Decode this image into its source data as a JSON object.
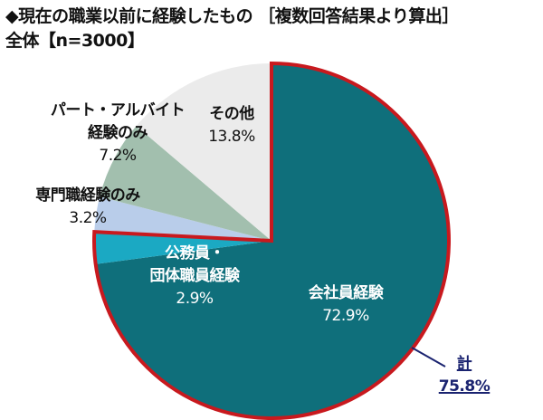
{
  "title": {
    "line1": "◆現在の職業以前に経験したもの ［複数回答結果より算出］",
    "line2": "全体【n=3000】"
  },
  "colors": {
    "company": "#0f6f7b",
    "public": "#1ba9c3",
    "specialist": "#b9cdea",
    "parttime": "#a2bfae",
    "other": "#ebebeb",
    "highlight_outline": "#c8191e",
    "total_label": "#1a2370"
  },
  "labels": {
    "company": {
      "name": "会社員経験",
      "pct": "72.9%"
    },
    "public": {
      "name1": "公務員・",
      "name2": "団体職員経験",
      "pct": "2.9%"
    },
    "specialist": {
      "name": "専門職経験のみ",
      "pct": "3.2%"
    },
    "parttime": {
      "name1": "パート・アルバイト",
      "name2": "経験のみ",
      "pct": "7.2%"
    },
    "other": {
      "name": "その他",
      "pct": "13.8%"
    },
    "total": {
      "name": "計",
      "pct": "75.8%"
    }
  },
  "chart_data": {
    "type": "pie",
    "title": "◆現在の職業以前に経験したもの ［複数回答結果より算出］ 全体【n=3000】",
    "categories": [
      "会社員経験",
      "公務員・団体職員経験",
      "専門職経験のみ",
      "パート・アルバイト経験のみ",
      "その他"
    ],
    "values": [
      72.9,
      2.9,
      3.2,
      7.2,
      13.8
    ],
    "unit": "%",
    "start_angle": "12 o'clock, clockwise",
    "annotations": [
      {
        "text": "計 75.8%",
        "covers": [
          "会社員経験",
          "公務員・団体職員経験"
        ],
        "style": "red outline around grouped slices"
      }
    ]
  }
}
